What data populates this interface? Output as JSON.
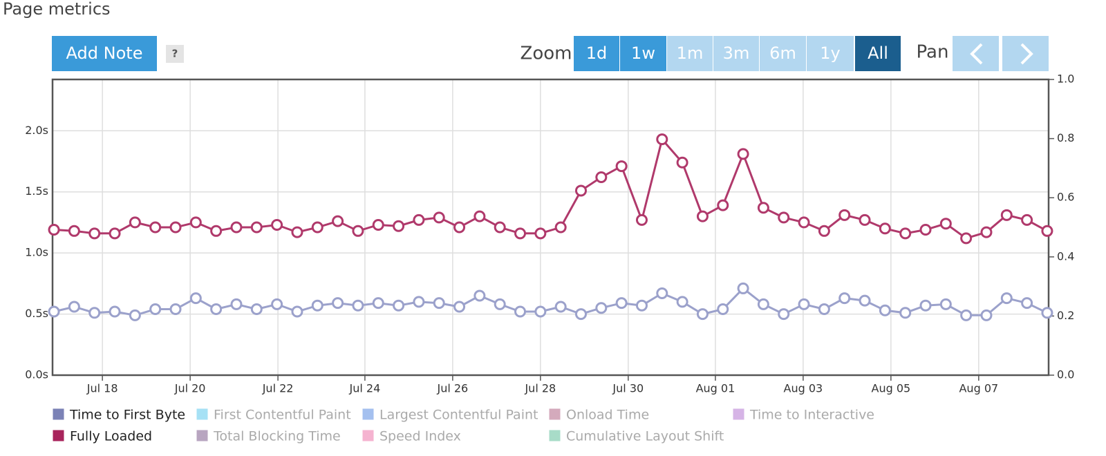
{
  "header": {
    "title": "Page metrics"
  },
  "toolbar": {
    "add_note": "Add Note",
    "help": "?",
    "zoom_label": "Zoom",
    "zoom_options": [
      "1d",
      "1w",
      "1m",
      "3m",
      "6m",
      "1y",
      "All"
    ],
    "pan_label": "Pan"
  },
  "chart_data": {
    "type": "line",
    "xlim": [
      -0.07,
      49.07
    ],
    "xticks": [
      {
        "value": 2.39,
        "label": "Jul 18"
      },
      {
        "value": 6.72,
        "label": "Jul 20"
      },
      {
        "value": 11.05,
        "label": "Jul 22"
      },
      {
        "value": 15.34,
        "label": "Jul 24"
      },
      {
        "value": 19.67,
        "label": "Jul 26"
      },
      {
        "value": 24.0,
        "label": "Jul 28"
      },
      {
        "value": 28.33,
        "label": "Jul 30"
      },
      {
        "value": 32.63,
        "label": "Aug 01"
      },
      {
        "value": 36.96,
        "label": "Aug 03"
      },
      {
        "value": 41.29,
        "label": "Aug 05"
      },
      {
        "value": 45.62,
        "label": "Aug 07"
      }
    ],
    "ylim": [
      0,
      2.42
    ],
    "yticks": [
      {
        "value": 0,
        "label": "0.0s"
      },
      {
        "value": 0.5,
        "label": "0.5s"
      },
      {
        "value": 1,
        "label": "1.0s"
      },
      {
        "value": 1.5,
        "label": "1.5s"
      },
      {
        "value": 2,
        "label": "2.0s"
      }
    ],
    "y2lim": [
      0,
      1
    ],
    "y2ticks": [
      {
        "value": 0,
        "label": "0.0"
      },
      0.2,
      0.4,
      0.6,
      0.8,
      {
        "value": 1,
        "label": "1.0"
      }
    ],
    "grid": true,
    "series": [
      {
        "name": "Time to First Byte",
        "color": "#9ba1cb",
        "swatch": "#7b82b6",
        "values": [
          0.52,
          0.56,
          0.51,
          0.52,
          0.49,
          0.54,
          0.54,
          0.63,
          0.54,
          0.58,
          0.54,
          0.58,
          0.52,
          0.57,
          0.59,
          0.57,
          0.59,
          0.57,
          0.6,
          0.59,
          0.56,
          0.65,
          0.58,
          0.52,
          0.52,
          0.56,
          0.5,
          0.55,
          0.59,
          0.57,
          0.67,
          0.6,
          0.5,
          0.54,
          0.71,
          0.58,
          0.5,
          0.58,
          0.54,
          0.63,
          0.61,
          0.53,
          0.51,
          0.57,
          0.58,
          0.49,
          0.49,
          0.63,
          0.59,
          0.51
        ]
      },
      {
        "name": "Fully Loaded",
        "color": "#b0396b",
        "swatch": "#a8245c",
        "values": [
          1.19,
          1.18,
          1.16,
          1.16,
          1.25,
          1.21,
          1.21,
          1.25,
          1.18,
          1.21,
          1.21,
          1.23,
          1.17,
          1.21,
          1.26,
          1.18,
          1.23,
          1.22,
          1.27,
          1.29,
          1.21,
          1.3,
          1.21,
          1.16,
          1.16,
          1.21,
          1.51,
          1.62,
          1.71,
          1.27,
          1.93,
          1.74,
          1.3,
          1.39,
          1.81,
          1.37,
          1.29,
          1.25,
          1.18,
          1.31,
          1.27,
          1.2,
          1.16,
          1.19,
          1.24,
          1.12,
          1.17,
          1.31,
          1.27,
          1.18
        ]
      }
    ],
    "hidden_metrics": [
      {
        "name": "First Contentful Paint",
        "color": "#a6e1f5"
      },
      {
        "name": "Largest Contentful Paint",
        "color": "#a4c0ef"
      },
      {
        "name": "Onload Time",
        "color": "#d4aabc"
      },
      {
        "name": "Time to Interactive",
        "color": "#d6b4e6"
      },
      {
        "name": "Total Blocking Time",
        "color": "#b8a5c0"
      },
      {
        "name": "Speed Index",
        "color": "#f5b3d0"
      },
      {
        "name": "Cumulative Layout Shift",
        "color": "#a8dcc8"
      }
    ]
  }
}
